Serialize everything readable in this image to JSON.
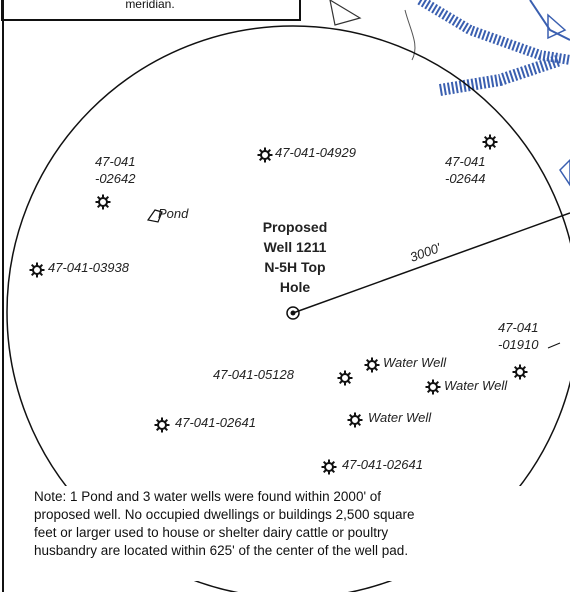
{
  "header": {
    "text": "meridian."
  },
  "center": {
    "lines": [
      "Proposed",
      "Well 1211",
      "N-5H Top",
      "Hole"
    ]
  },
  "radius_label": "3000'",
  "labels": [
    {
      "lines": [
        "47-041-04929"
      ]
    },
    {
      "lines": [
        "47-041",
        "-02644"
      ]
    },
    {
      "lines": [
        "47-041",
        "-02642"
      ]
    },
    {
      "lines": [
        "Pond"
      ]
    },
    {
      "lines": [
        "47-041-03938"
      ]
    },
    {
      "lines": [
        "47-041",
        "-01910"
      ]
    },
    {
      "lines": [
        "47-041-05128"
      ]
    },
    {
      "lines": [
        "Water Well"
      ]
    },
    {
      "lines": [
        "Water Well"
      ]
    },
    {
      "lines": [
        "47-041-02641"
      ]
    },
    {
      "lines": [
        "Water Well"
      ]
    },
    {
      "lines": [
        "47-041-02641"
      ]
    }
  ],
  "note": [
    "Note: 1 Pond and 3 water wells were found within 2000' of",
    "proposed well. No occupied dwellings or buildings 2,500 square",
    "feet or larger used to house or shelter dairy cattle or poultry",
    "husbandry are located within 625' of the center of the well pad."
  ]
}
